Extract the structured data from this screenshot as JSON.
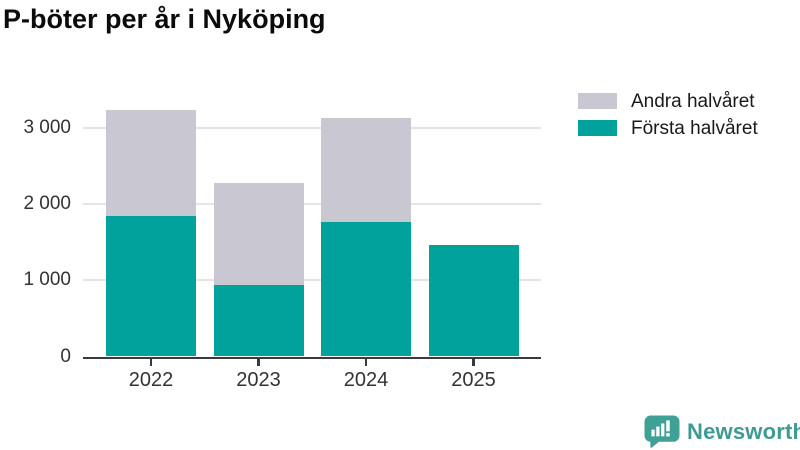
{
  "title": "P-böter per år i Nyköping",
  "legend": {
    "items": [
      {
        "label": "Andra halvåret",
        "color": "#c9c7d1"
      },
      {
        "label": "Första halvåret",
        "color": "#00a29b"
      }
    ]
  },
  "chart_data": {
    "type": "bar",
    "stacked": true,
    "title": "P-böter per år i Nyköping",
    "categories": [
      "2022",
      "2023",
      "2024",
      "2025"
    ],
    "series": [
      {
        "name": "Första halvåret",
        "color": "#00a29b",
        "values": [
          1850,
          940,
          1770,
          1460
        ]
      },
      {
        "name": "Andra halvåret",
        "color": "#c9c7d1",
        "values": [
          1390,
          1340,
          1360,
          0
        ]
      }
    ],
    "totals": [
      3240,
      2280,
      3130,
      1460
    ],
    "xlabel": "",
    "ylabel": "",
    "ylim": [
      0,
      3450
    ],
    "yticks": [
      0,
      1000,
      2000,
      3000
    ],
    "ytick_labels": [
      "0",
      "1 000",
      "2 000",
      "3 000"
    ],
    "grid": true,
    "legend_position": "top-right"
  },
  "branding": {
    "name": "Newsworthy",
    "icon": "newsworthy-speech-bubble-chart-icon",
    "color": "#3d9b93",
    "icon_color": "#3fa096"
  }
}
